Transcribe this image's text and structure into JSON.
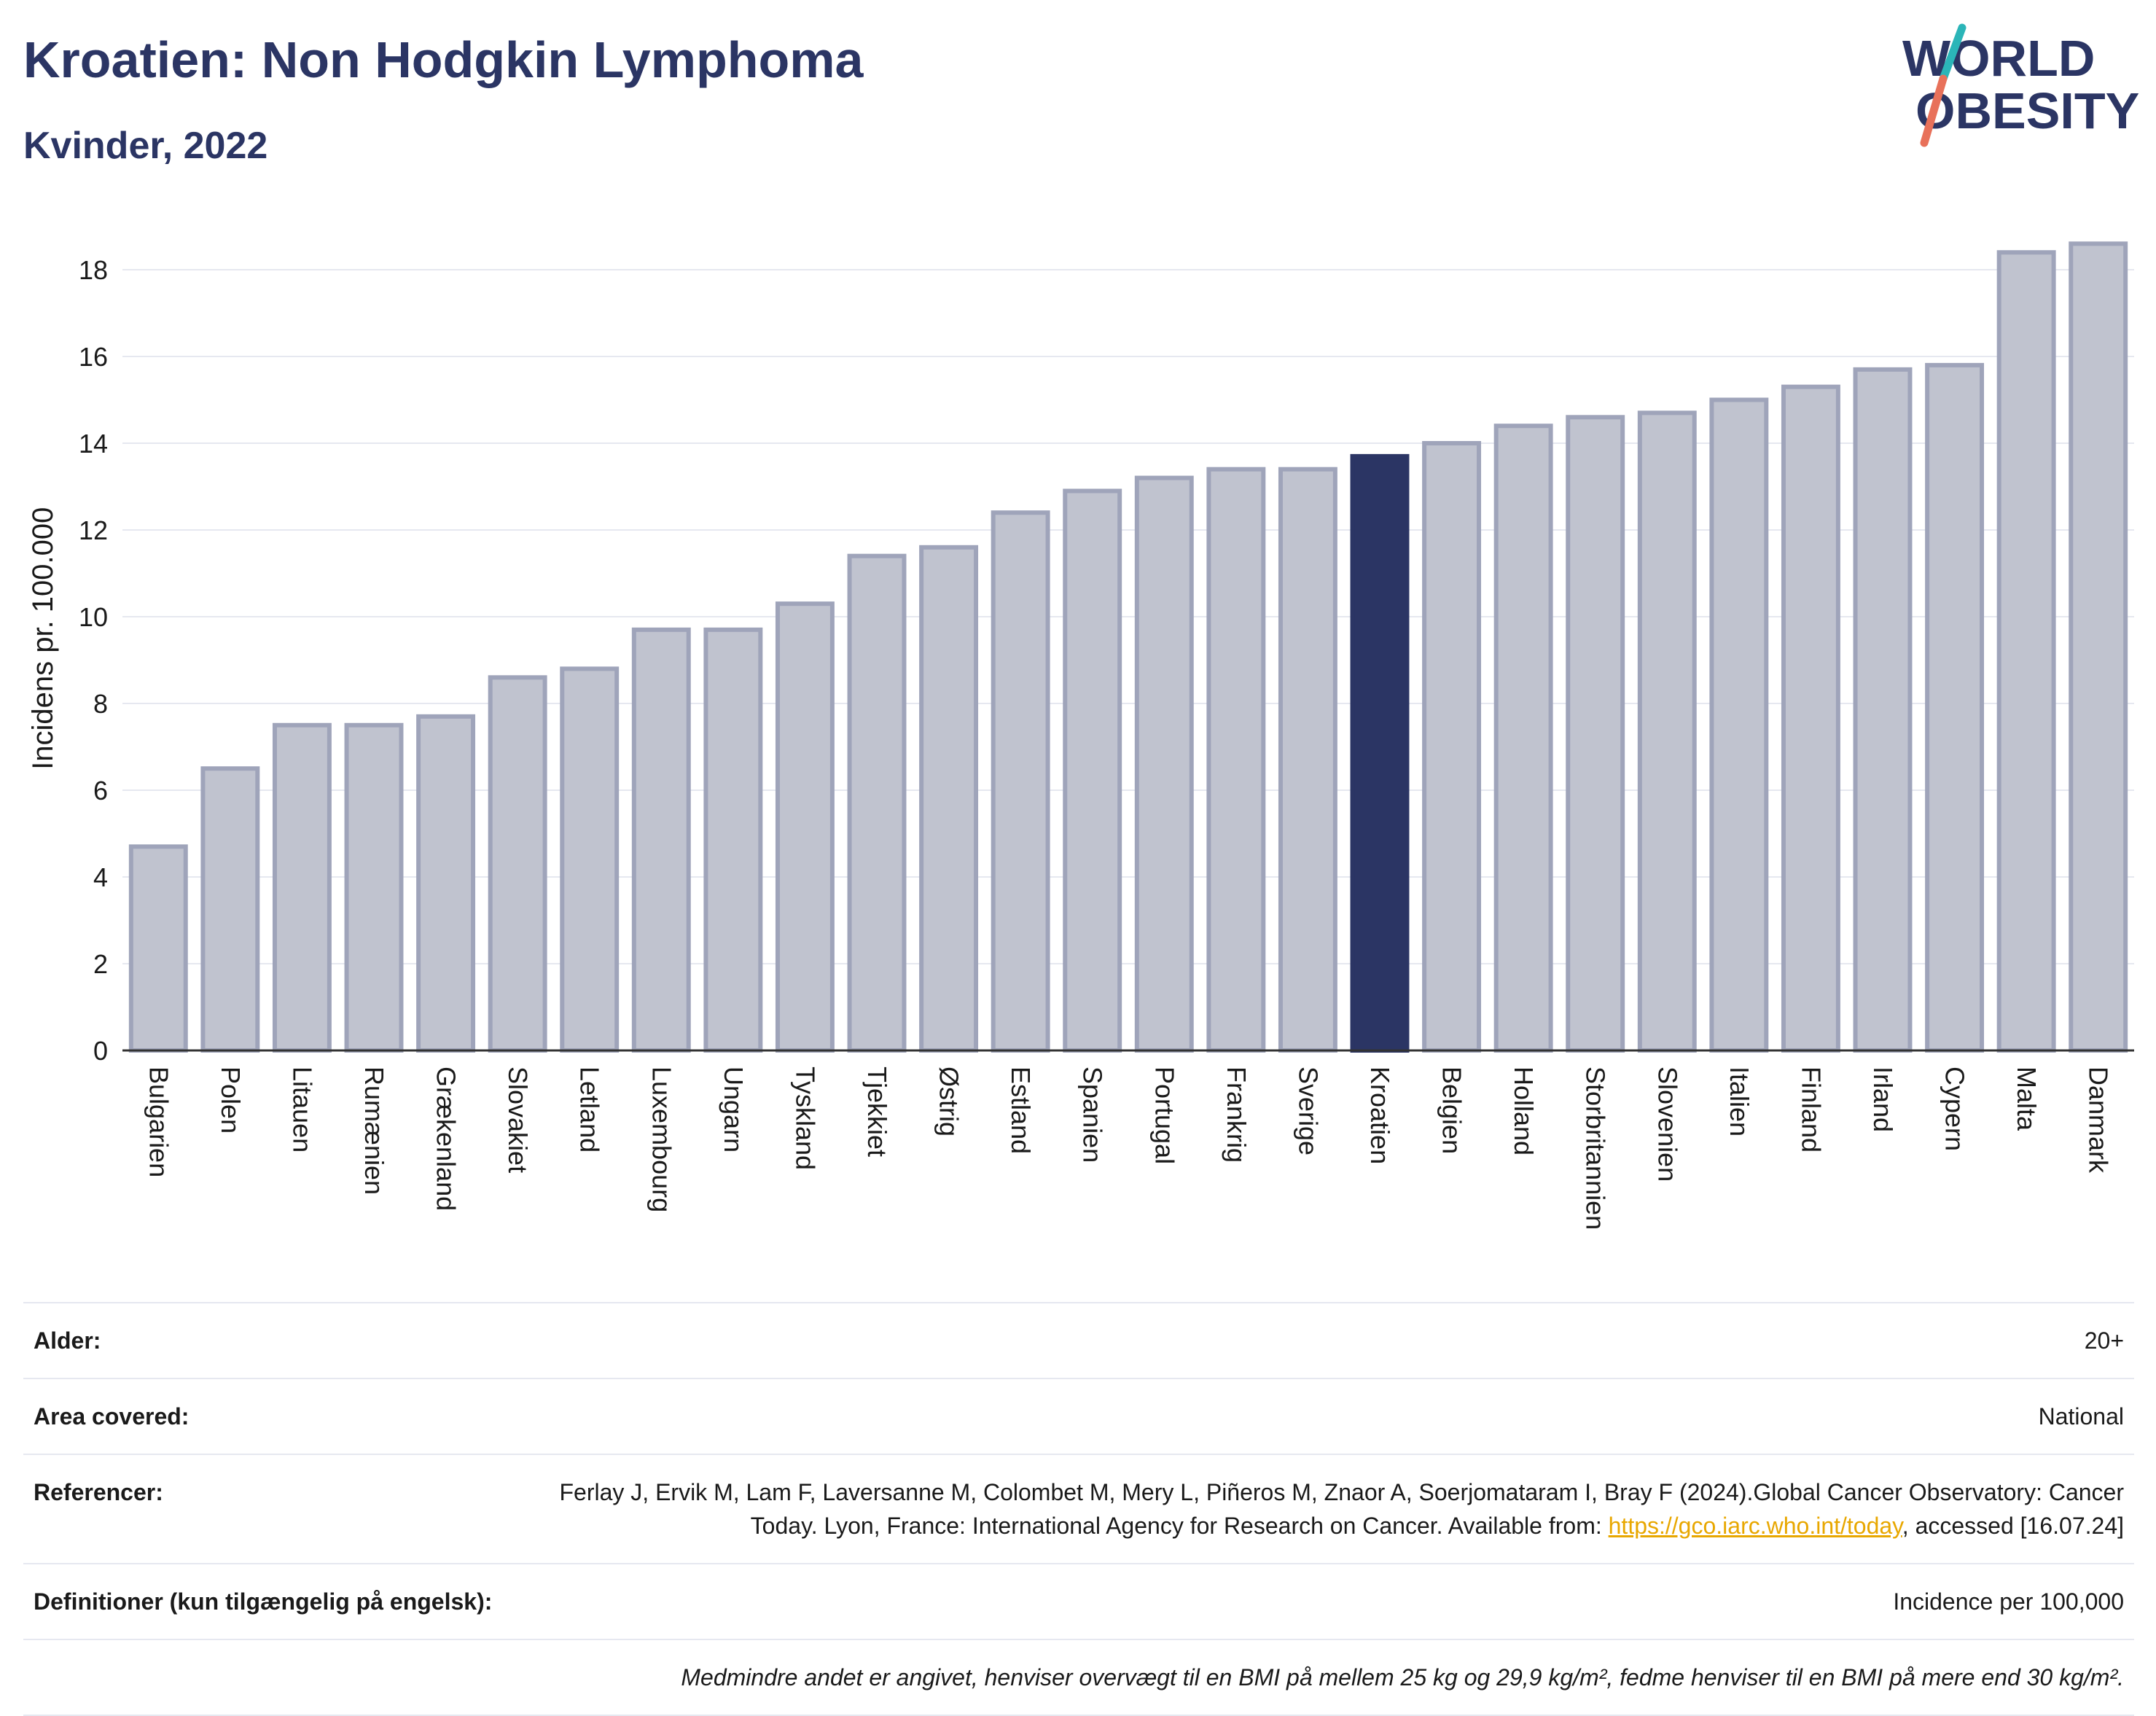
{
  "header": {
    "title": "Kroatien: Non Hodgkin Lymphoma",
    "subtitle": "Kvinder, 2022"
  },
  "logo": {
    "line1": "WORLD",
    "line2": "OBESITY",
    "colors": {
      "text": "#2b3564",
      "slash_top": "#2bb5b8",
      "slash_bottom": "#e8715a"
    }
  },
  "chart_data": {
    "type": "bar",
    "title": "",
    "xlabel": "",
    "ylabel": "Incidens pr. 100.000",
    "ylim": [
      0,
      19
    ],
    "yticks": [
      0,
      2,
      4,
      6,
      8,
      10,
      12,
      14,
      16,
      18
    ],
    "grid": true,
    "legend": "none",
    "highlight": "Kroatien",
    "colors": {
      "bar": "#c0c3cf",
      "bar_edge": "#9fa4ba",
      "highlight": "#2b3564",
      "grid": "#e6e8f0",
      "axis": "#333333"
    },
    "categories": [
      "Bulgarien",
      "Polen",
      "Litauen",
      "Rumænien",
      "Grækenland",
      "Slovakiet",
      "Letland",
      "Luxembourg",
      "Ungarn",
      "Tyskland",
      "Tjekkiet",
      "Østrig",
      "Estland",
      "Spanien",
      "Portugal",
      "Frankrig",
      "Sverige",
      "Kroatien",
      "Belgien",
      "Holland",
      "Storbritannien",
      "Slovenien",
      "Italien",
      "Finland",
      "Irland",
      "Cypern",
      "Malta",
      "Danmark"
    ],
    "values": [
      4.7,
      6.5,
      7.5,
      7.5,
      7.7,
      8.6,
      8.8,
      9.7,
      9.7,
      10.3,
      11.4,
      11.6,
      12.4,
      12.9,
      13.2,
      13.4,
      13.4,
      13.7,
      14.0,
      14.4,
      14.6,
      14.7,
      15.0,
      15.3,
      15.7,
      15.8,
      18.4,
      18.6
    ]
  },
  "info": {
    "rows": [
      {
        "label": "Alder:",
        "value": "20+"
      },
      {
        "label": "Area covered:",
        "value": "National"
      },
      {
        "label": "Referencer:",
        "value_before": "Ferlay J, Ervik M, Lam F, Laversanne M, Colombet M, Mery L, Piñeros M, Znaor A, Soerjomataram I, Bray F (2024).Global Cancer Observatory: Cancer Today. Lyon, France: International Agency for Research on Cancer. Available from: ",
        "link": "https://gco.iarc.who.int/today",
        "value_after": ", accessed [16.07.24]"
      },
      {
        "label": "Definitioner (kun tilgængelig på engelsk):",
        "value": "Incidence per 100,000"
      }
    ],
    "note": "Medmindre andet er angivet, henviser overvægt til en BMI på mellem 25 kg og 29,9 kg/m², fedme henviser til en BMI på mere end 30 kg/m²."
  }
}
